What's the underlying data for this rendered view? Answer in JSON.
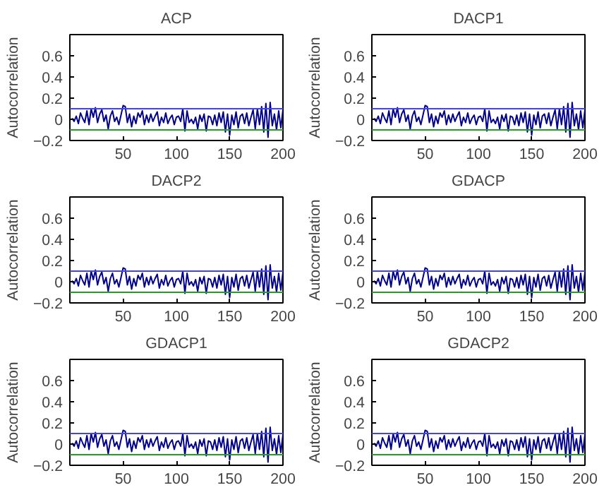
{
  "chart_data": [
    {
      "type": "line",
      "title": "ACP",
      "ylabel": "Autocorrelation",
      "xlim": [
        0,
        200
      ],
      "ylim": [
        -0.2,
        0.8
      ],
      "xticks": [
        50,
        100,
        150,
        200
      ],
      "yticks": [
        -0.2,
        0,
        0.2,
        0.4,
        0.6
      ],
      "x": [
        2,
        4,
        6,
        8,
        10,
        12,
        14,
        16,
        18,
        20,
        22,
        24,
        26,
        28,
        30,
        32,
        34,
        36,
        38,
        40,
        42,
        44,
        46,
        48,
        50,
        52,
        54,
        56,
        58,
        60,
        62,
        64,
        66,
        68,
        70,
        72,
        74,
        76,
        78,
        80,
        82,
        84,
        86,
        88,
        90,
        92,
        94,
        96,
        98,
        100,
        102,
        104,
        106,
        108,
        110,
        112,
        114,
        116,
        118,
        120,
        122,
        124,
        126,
        128,
        130,
        132,
        134,
        136,
        138,
        140,
        142,
        144,
        146,
        148,
        150,
        152,
        154,
        156,
        158,
        160,
        162,
        164,
        166,
        168,
        170,
        172,
        174,
        176,
        178,
        180,
        182,
        184,
        186,
        188,
        190,
        192,
        194,
        196,
        198,
        200
      ],
      "series": [
        {
          "color": "#00008b",
          "values": [
            0.01,
            -0.02,
            0.03,
            -0.04,
            0.06,
            0.01,
            -0.03,
            0.08,
            -0.05,
            0.1,
            0.02,
            0.11,
            -0.03,
            0.05,
            0.09,
            -0.02,
            0.04,
            -0.09,
            0.03,
            0.08,
            -0.02,
            0.02,
            -0.05,
            0.04,
            0.13,
            0.12,
            -0.03,
            0.05,
            -0.07,
            0.03,
            -0.04,
            0.06,
            0.02,
            0.08,
            -0.05,
            0.04,
            -0.03,
            0.05,
            -0.02,
            0.03,
            0.07,
            -0.06,
            0.02,
            -0.03,
            0.06,
            -0.04,
            0.01,
            0.04,
            -0.05,
            0.02,
            0.03,
            -0.02,
            0.1,
            -0.11,
            0.08,
            -0.03,
            0.0,
            -0.04,
            0.02,
            -0.09,
            0.04,
            -0.02,
            0.05,
            -0.11,
            0.03,
            0.02,
            -0.05,
            0.04,
            -0.06,
            0.06,
            -0.03,
            0.07,
            -0.12,
            0.05,
            -0.15,
            0.04,
            -0.05,
            0.07,
            -0.08,
            0.03,
            0.05,
            -0.04,
            0.06,
            -0.06,
            0.02,
            0.09,
            -0.09,
            0.1,
            -0.05,
            0.12,
            -0.12,
            0.15,
            -0.17,
            0.16,
            -0.06,
            0.05,
            -0.1,
            0.08,
            -0.08,
            0.09
          ]
        }
      ],
      "ref_lines": [
        {
          "axis": "y",
          "value": 0.1,
          "color": "#4040ff"
        },
        {
          "axis": "y",
          "value": -0.1,
          "color": "#20a020"
        }
      ]
    },
    {
      "type": "line",
      "title": "DACP1",
      "ylabel": "Autocorrelation",
      "xlim": [
        0,
        200
      ],
      "ylim": [
        -0.2,
        0.8
      ],
      "xticks": [
        50,
        100,
        150,
        200
      ],
      "yticks": [
        -0.2,
        0,
        0.2,
        0.4,
        0.6
      ],
      "x": [
        2,
        4,
        6,
        8,
        10,
        12,
        14,
        16,
        18,
        20,
        22,
        24,
        26,
        28,
        30,
        32,
        34,
        36,
        38,
        40,
        42,
        44,
        46,
        48,
        50,
        52,
        54,
        56,
        58,
        60,
        62,
        64,
        66,
        68,
        70,
        72,
        74,
        76,
        78,
        80,
        82,
        84,
        86,
        88,
        90,
        92,
        94,
        96,
        98,
        100,
        102,
        104,
        106,
        108,
        110,
        112,
        114,
        116,
        118,
        120,
        122,
        124,
        126,
        128,
        130,
        132,
        134,
        136,
        138,
        140,
        142,
        144,
        146,
        148,
        150,
        152,
        154,
        156,
        158,
        160,
        162,
        164,
        166,
        168,
        170,
        172,
        174,
        176,
        178,
        180,
        182,
        184,
        186,
        188,
        190,
        192,
        194,
        196,
        198,
        200
      ],
      "series": [
        {
          "color": "#00008b",
          "values": [
            0.01,
            -0.02,
            0.03,
            -0.04,
            0.06,
            0.01,
            -0.03,
            0.08,
            -0.05,
            0.1,
            0.02,
            0.11,
            -0.03,
            0.05,
            0.09,
            -0.02,
            0.04,
            -0.09,
            0.03,
            0.08,
            -0.02,
            0.02,
            -0.05,
            0.04,
            0.13,
            0.12,
            -0.03,
            0.05,
            -0.07,
            0.03,
            -0.04,
            0.06,
            0.02,
            0.08,
            -0.05,
            0.04,
            -0.03,
            0.05,
            -0.02,
            0.03,
            0.07,
            -0.06,
            0.02,
            -0.03,
            0.06,
            -0.04,
            0.01,
            0.04,
            -0.05,
            0.02,
            0.03,
            -0.02,
            0.1,
            -0.11,
            0.08,
            -0.03,
            0.0,
            -0.04,
            0.02,
            -0.09,
            0.04,
            -0.02,
            0.05,
            -0.11,
            0.03,
            0.02,
            -0.05,
            0.04,
            -0.06,
            0.06,
            -0.03,
            0.07,
            -0.12,
            0.05,
            -0.15,
            0.04,
            -0.05,
            0.07,
            -0.08,
            0.03,
            0.05,
            -0.04,
            0.06,
            -0.06,
            0.02,
            0.09,
            -0.09,
            0.1,
            -0.05,
            0.12,
            -0.12,
            0.15,
            -0.17,
            0.16,
            -0.06,
            0.05,
            -0.1,
            0.08,
            -0.08,
            0.09
          ]
        }
      ],
      "ref_lines": [
        {
          "axis": "y",
          "value": 0.1,
          "color": "#4040ff"
        },
        {
          "axis": "y",
          "value": -0.1,
          "color": "#20a020"
        }
      ]
    },
    {
      "type": "line",
      "title": "DACP2",
      "ylabel": "Autocorrelation",
      "xlim": [
        0,
        200
      ],
      "ylim": [
        -0.2,
        0.8
      ],
      "xticks": [
        50,
        100,
        150,
        200
      ],
      "yticks": [
        -0.2,
        0,
        0.2,
        0.4,
        0.6
      ],
      "x": [
        2,
        4,
        6,
        8,
        10,
        12,
        14,
        16,
        18,
        20,
        22,
        24,
        26,
        28,
        30,
        32,
        34,
        36,
        38,
        40,
        42,
        44,
        46,
        48,
        50,
        52,
        54,
        56,
        58,
        60,
        62,
        64,
        66,
        68,
        70,
        72,
        74,
        76,
        78,
        80,
        82,
        84,
        86,
        88,
        90,
        92,
        94,
        96,
        98,
        100,
        102,
        104,
        106,
        108,
        110,
        112,
        114,
        116,
        118,
        120,
        122,
        124,
        126,
        128,
        130,
        132,
        134,
        136,
        138,
        140,
        142,
        144,
        146,
        148,
        150,
        152,
        154,
        156,
        158,
        160,
        162,
        164,
        166,
        168,
        170,
        172,
        174,
        176,
        178,
        180,
        182,
        184,
        186,
        188,
        190,
        192,
        194,
        196,
        198,
        200
      ],
      "series": [
        {
          "color": "#00008b",
          "values": [
            0.01,
            -0.02,
            0.03,
            -0.04,
            0.06,
            0.01,
            -0.03,
            0.08,
            -0.05,
            0.1,
            0.02,
            0.11,
            -0.03,
            0.05,
            0.09,
            -0.02,
            0.04,
            -0.09,
            0.03,
            0.08,
            -0.02,
            0.02,
            -0.05,
            0.04,
            0.13,
            0.12,
            -0.03,
            0.05,
            -0.07,
            0.03,
            -0.04,
            0.06,
            0.02,
            0.08,
            -0.05,
            0.04,
            -0.03,
            0.05,
            -0.02,
            0.03,
            0.07,
            -0.06,
            0.02,
            -0.03,
            0.06,
            -0.04,
            0.01,
            0.04,
            -0.05,
            0.02,
            0.03,
            -0.02,
            0.1,
            -0.11,
            0.08,
            -0.03,
            0.0,
            -0.04,
            0.02,
            -0.09,
            0.04,
            -0.02,
            0.05,
            -0.11,
            0.03,
            0.02,
            -0.05,
            0.04,
            -0.06,
            0.06,
            -0.03,
            0.07,
            -0.12,
            0.05,
            -0.15,
            0.04,
            -0.05,
            0.07,
            -0.08,
            0.03,
            0.05,
            -0.04,
            0.06,
            -0.06,
            0.02,
            0.09,
            -0.09,
            0.1,
            -0.05,
            0.12,
            -0.12,
            0.15,
            -0.17,
            0.16,
            -0.06,
            0.05,
            -0.1,
            0.08,
            -0.08,
            0.09
          ]
        }
      ],
      "ref_lines": [
        {
          "axis": "y",
          "value": 0.1,
          "color": "#4040ff"
        },
        {
          "axis": "y",
          "value": -0.1,
          "color": "#20a020"
        }
      ]
    },
    {
      "type": "line",
      "title": "GDACP",
      "ylabel": "Autocorrelation",
      "xlim": [
        0,
        200
      ],
      "ylim": [
        -0.2,
        0.8
      ],
      "xticks": [
        50,
        100,
        150,
        200
      ],
      "yticks": [
        -0.2,
        0,
        0.2,
        0.4,
        0.6
      ],
      "x": [
        2,
        4,
        6,
        8,
        10,
        12,
        14,
        16,
        18,
        20,
        22,
        24,
        26,
        28,
        30,
        32,
        34,
        36,
        38,
        40,
        42,
        44,
        46,
        48,
        50,
        52,
        54,
        56,
        58,
        60,
        62,
        64,
        66,
        68,
        70,
        72,
        74,
        76,
        78,
        80,
        82,
        84,
        86,
        88,
        90,
        92,
        94,
        96,
        98,
        100,
        102,
        104,
        106,
        108,
        110,
        112,
        114,
        116,
        118,
        120,
        122,
        124,
        126,
        128,
        130,
        132,
        134,
        136,
        138,
        140,
        142,
        144,
        146,
        148,
        150,
        152,
        154,
        156,
        158,
        160,
        162,
        164,
        166,
        168,
        170,
        172,
        174,
        176,
        178,
        180,
        182,
        184,
        186,
        188,
        190,
        192,
        194,
        196,
        198,
        200
      ],
      "series": [
        {
          "color": "#00008b",
          "values": [
            0.01,
            -0.02,
            0.03,
            -0.04,
            0.06,
            0.01,
            -0.03,
            0.08,
            -0.05,
            0.1,
            0.02,
            0.11,
            -0.03,
            0.05,
            0.09,
            -0.02,
            0.04,
            -0.09,
            0.03,
            0.08,
            -0.02,
            0.02,
            -0.05,
            0.04,
            0.13,
            0.12,
            -0.03,
            0.05,
            -0.07,
            0.03,
            -0.04,
            0.06,
            0.02,
            0.08,
            -0.05,
            0.04,
            -0.03,
            0.05,
            -0.02,
            0.03,
            0.07,
            -0.06,
            0.02,
            -0.03,
            0.06,
            -0.04,
            0.01,
            0.04,
            -0.05,
            0.02,
            0.03,
            -0.02,
            0.1,
            -0.11,
            0.08,
            -0.03,
            0.0,
            -0.04,
            0.02,
            -0.09,
            0.04,
            -0.02,
            0.05,
            -0.11,
            0.03,
            0.02,
            -0.05,
            0.04,
            -0.06,
            0.06,
            -0.03,
            0.07,
            -0.12,
            0.05,
            -0.15,
            0.04,
            -0.05,
            0.07,
            -0.08,
            0.03,
            0.05,
            -0.04,
            0.06,
            -0.06,
            0.02,
            0.09,
            -0.09,
            0.1,
            -0.05,
            0.12,
            -0.12,
            0.15,
            -0.17,
            0.16,
            -0.06,
            0.05,
            -0.1,
            0.08,
            -0.08,
            0.09
          ]
        }
      ],
      "ref_lines": [
        {
          "axis": "y",
          "value": 0.1,
          "color": "#4040ff"
        },
        {
          "axis": "y",
          "value": -0.1,
          "color": "#20a020"
        }
      ]
    },
    {
      "type": "line",
      "title": "GDACP1",
      "ylabel": "Autocorrelation",
      "xlim": [
        0,
        200
      ],
      "ylim": [
        -0.2,
        0.8
      ],
      "xticks": [
        50,
        100,
        150,
        200
      ],
      "yticks": [
        -0.2,
        0,
        0.2,
        0.4,
        0.6
      ],
      "x": [
        2,
        4,
        6,
        8,
        10,
        12,
        14,
        16,
        18,
        20,
        22,
        24,
        26,
        28,
        30,
        32,
        34,
        36,
        38,
        40,
        42,
        44,
        46,
        48,
        50,
        52,
        54,
        56,
        58,
        60,
        62,
        64,
        66,
        68,
        70,
        72,
        74,
        76,
        78,
        80,
        82,
        84,
        86,
        88,
        90,
        92,
        94,
        96,
        98,
        100,
        102,
        104,
        106,
        108,
        110,
        112,
        114,
        116,
        118,
        120,
        122,
        124,
        126,
        128,
        130,
        132,
        134,
        136,
        138,
        140,
        142,
        144,
        146,
        148,
        150,
        152,
        154,
        156,
        158,
        160,
        162,
        164,
        166,
        168,
        170,
        172,
        174,
        176,
        178,
        180,
        182,
        184,
        186,
        188,
        190,
        192,
        194,
        196,
        198,
        200
      ],
      "series": [
        {
          "color": "#00008b",
          "values": [
            0.01,
            -0.02,
            0.03,
            -0.04,
            0.06,
            0.01,
            -0.03,
            0.08,
            -0.05,
            0.1,
            0.02,
            0.11,
            -0.03,
            0.05,
            0.09,
            -0.02,
            0.04,
            -0.09,
            0.03,
            0.08,
            -0.02,
            0.02,
            -0.05,
            0.04,
            0.13,
            0.12,
            -0.03,
            0.05,
            -0.07,
            0.03,
            -0.04,
            0.06,
            0.02,
            0.08,
            -0.05,
            0.04,
            -0.03,
            0.05,
            -0.02,
            0.03,
            0.07,
            -0.06,
            0.02,
            -0.03,
            0.06,
            -0.04,
            0.01,
            0.04,
            -0.05,
            0.02,
            0.03,
            -0.02,
            0.1,
            -0.11,
            0.08,
            -0.03,
            0.0,
            -0.04,
            0.02,
            -0.09,
            0.04,
            -0.02,
            0.05,
            -0.11,
            0.03,
            0.02,
            -0.05,
            0.04,
            -0.06,
            0.06,
            -0.03,
            0.07,
            -0.12,
            0.05,
            -0.15,
            0.04,
            -0.05,
            0.07,
            -0.08,
            0.03,
            0.05,
            -0.04,
            0.06,
            -0.06,
            0.02,
            0.09,
            -0.09,
            0.1,
            -0.05,
            0.12,
            -0.12,
            0.15,
            -0.17,
            0.16,
            -0.06,
            0.05,
            -0.1,
            0.08,
            -0.08,
            0.09
          ]
        }
      ],
      "ref_lines": [
        {
          "axis": "y",
          "value": 0.1,
          "color": "#4040ff"
        },
        {
          "axis": "y",
          "value": -0.1,
          "color": "#20a020"
        }
      ]
    },
    {
      "type": "line",
      "title": "GDACP2",
      "ylabel": "Autocorrelation",
      "xlim": [
        0,
        200
      ],
      "ylim": [
        -0.2,
        0.8
      ],
      "xticks": [
        50,
        100,
        150,
        200
      ],
      "yticks": [
        -0.2,
        0,
        0.2,
        0.4,
        0.6
      ],
      "x": [
        2,
        4,
        6,
        8,
        10,
        12,
        14,
        16,
        18,
        20,
        22,
        24,
        26,
        28,
        30,
        32,
        34,
        36,
        38,
        40,
        42,
        44,
        46,
        48,
        50,
        52,
        54,
        56,
        58,
        60,
        62,
        64,
        66,
        68,
        70,
        72,
        74,
        76,
        78,
        80,
        82,
        84,
        86,
        88,
        90,
        92,
        94,
        96,
        98,
        100,
        102,
        104,
        106,
        108,
        110,
        112,
        114,
        116,
        118,
        120,
        122,
        124,
        126,
        128,
        130,
        132,
        134,
        136,
        138,
        140,
        142,
        144,
        146,
        148,
        150,
        152,
        154,
        156,
        158,
        160,
        162,
        164,
        166,
        168,
        170,
        172,
        174,
        176,
        178,
        180,
        182,
        184,
        186,
        188,
        190,
        192,
        194,
        196,
        198,
        200
      ],
      "series": [
        {
          "color": "#00008b",
          "values": [
            0.01,
            -0.02,
            0.03,
            -0.04,
            0.06,
            0.01,
            -0.03,
            0.08,
            -0.05,
            0.1,
            0.02,
            0.11,
            -0.03,
            0.05,
            0.09,
            -0.02,
            0.04,
            -0.09,
            0.03,
            0.08,
            -0.02,
            0.02,
            -0.05,
            0.04,
            0.13,
            0.12,
            -0.03,
            0.05,
            -0.07,
            0.03,
            -0.04,
            0.06,
            0.02,
            0.08,
            -0.05,
            0.04,
            -0.03,
            0.05,
            -0.02,
            0.03,
            0.07,
            -0.06,
            0.02,
            -0.03,
            0.06,
            -0.04,
            0.01,
            0.04,
            -0.05,
            0.02,
            0.03,
            -0.02,
            0.1,
            -0.11,
            0.08,
            -0.03,
            0.0,
            -0.04,
            0.02,
            -0.09,
            0.04,
            -0.02,
            0.05,
            -0.11,
            0.03,
            0.02,
            -0.05,
            0.04,
            -0.06,
            0.06,
            -0.03,
            0.07,
            -0.12,
            0.05,
            -0.15,
            0.04,
            -0.05,
            0.07,
            -0.08,
            0.03,
            0.05,
            -0.04,
            0.06,
            -0.06,
            0.02,
            0.09,
            -0.09,
            0.1,
            -0.05,
            0.12,
            -0.12,
            0.15,
            -0.17,
            0.16,
            -0.06,
            0.05,
            -0.1,
            0.08,
            -0.08,
            0.09
          ]
        }
      ],
      "ref_lines": [
        {
          "axis": "y",
          "value": 0.1,
          "color": "#4040ff"
        },
        {
          "axis": "y",
          "value": -0.1,
          "color": "#20a020"
        }
      ]
    }
  ]
}
